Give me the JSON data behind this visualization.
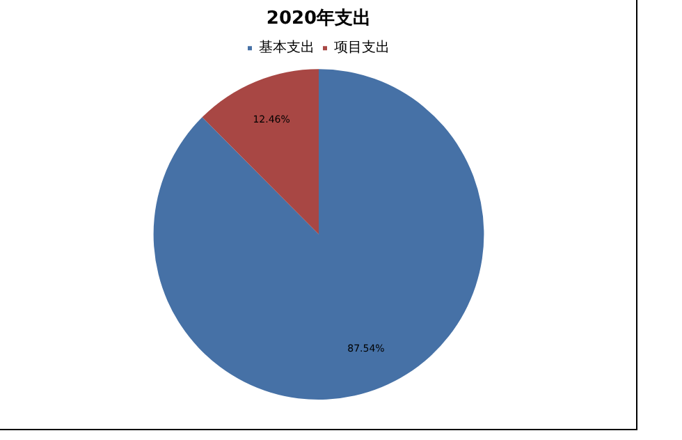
{
  "chart_data": {
    "type": "pie",
    "title": "2020年支出",
    "categories": [
      "基本支出",
      "项目支出"
    ],
    "values": [
      87.54,
      12.46
    ],
    "colors": [
      "#4671a6",
      "#a84744"
    ],
    "value_labels": [
      "87.54%",
      "12.46%"
    ],
    "legend": "top"
  }
}
